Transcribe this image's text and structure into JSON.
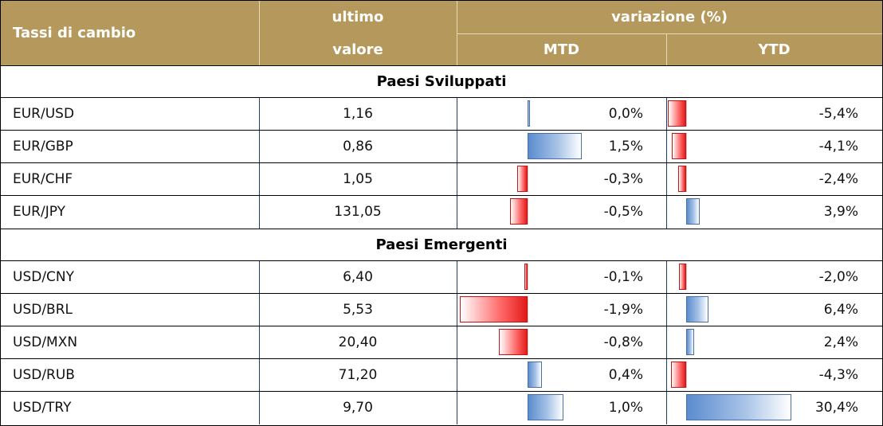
{
  "header": {
    "col1": "Tassi di cambio",
    "col2_line1": "ultimo",
    "col2_line2": "valore",
    "group": "variazione (%)",
    "mtd": "MTD",
    "ytd": "YTD"
  },
  "sections": [
    {
      "title": "Paesi Sviluppati",
      "rows": [
        {
          "pair": "EUR/USD",
          "value": "1,16",
          "mtd": "0,0%",
          "ytd": "-5,4%",
          "mtd_num": 0.0,
          "ytd_num": -5.4
        },
        {
          "pair": "EUR/GBP",
          "value": "0,86",
          "mtd": "1,5%",
          "ytd": "-4,1%",
          "mtd_num": 1.5,
          "ytd_num": -4.1
        },
        {
          "pair": "EUR/CHF",
          "value": "1,05",
          "mtd": "-0,3%",
          "ytd": "-2,4%",
          "mtd_num": -0.3,
          "ytd_num": -2.4
        },
        {
          "pair": "EUR/JPY",
          "value": "131,05",
          "mtd": "-0,5%",
          "ytd": "3,9%",
          "mtd_num": -0.5,
          "ytd_num": 3.9
        }
      ]
    },
    {
      "title": "Paesi Emergenti",
      "rows": [
        {
          "pair": "USD/CNY",
          "value": "6,40",
          "mtd": "-0,1%",
          "ytd": "-2,0%",
          "mtd_num": -0.1,
          "ytd_num": -2.0
        },
        {
          "pair": "USD/BRL",
          "value": "5,53",
          "mtd": "-1,9%",
          "ytd": "6,4%",
          "mtd_num": -1.9,
          "ytd_num": 6.4
        },
        {
          "pair": "USD/MXN",
          "value": "20,40",
          "mtd": "-0,8%",
          "ytd": "2,4%",
          "mtd_num": -0.8,
          "ytd_num": 2.4
        },
        {
          "pair": "USD/RUB",
          "value": "71,20",
          "mtd": "0,4%",
          "ytd": "-4,3%",
          "mtd_num": 0.4,
          "ytd_num": -4.3
        },
        {
          "pair": "USD/TRY",
          "value": "9,70",
          "mtd": "1,0%",
          "ytd": "30,4%",
          "mtd_num": 1.0,
          "ytd_num": 30.4
        }
      ]
    }
  ],
  "colors": {
    "header_bg": "#b5995c",
    "negative_bar": "#e21b1b",
    "positive_bar": "#5b8ccf"
  }
}
